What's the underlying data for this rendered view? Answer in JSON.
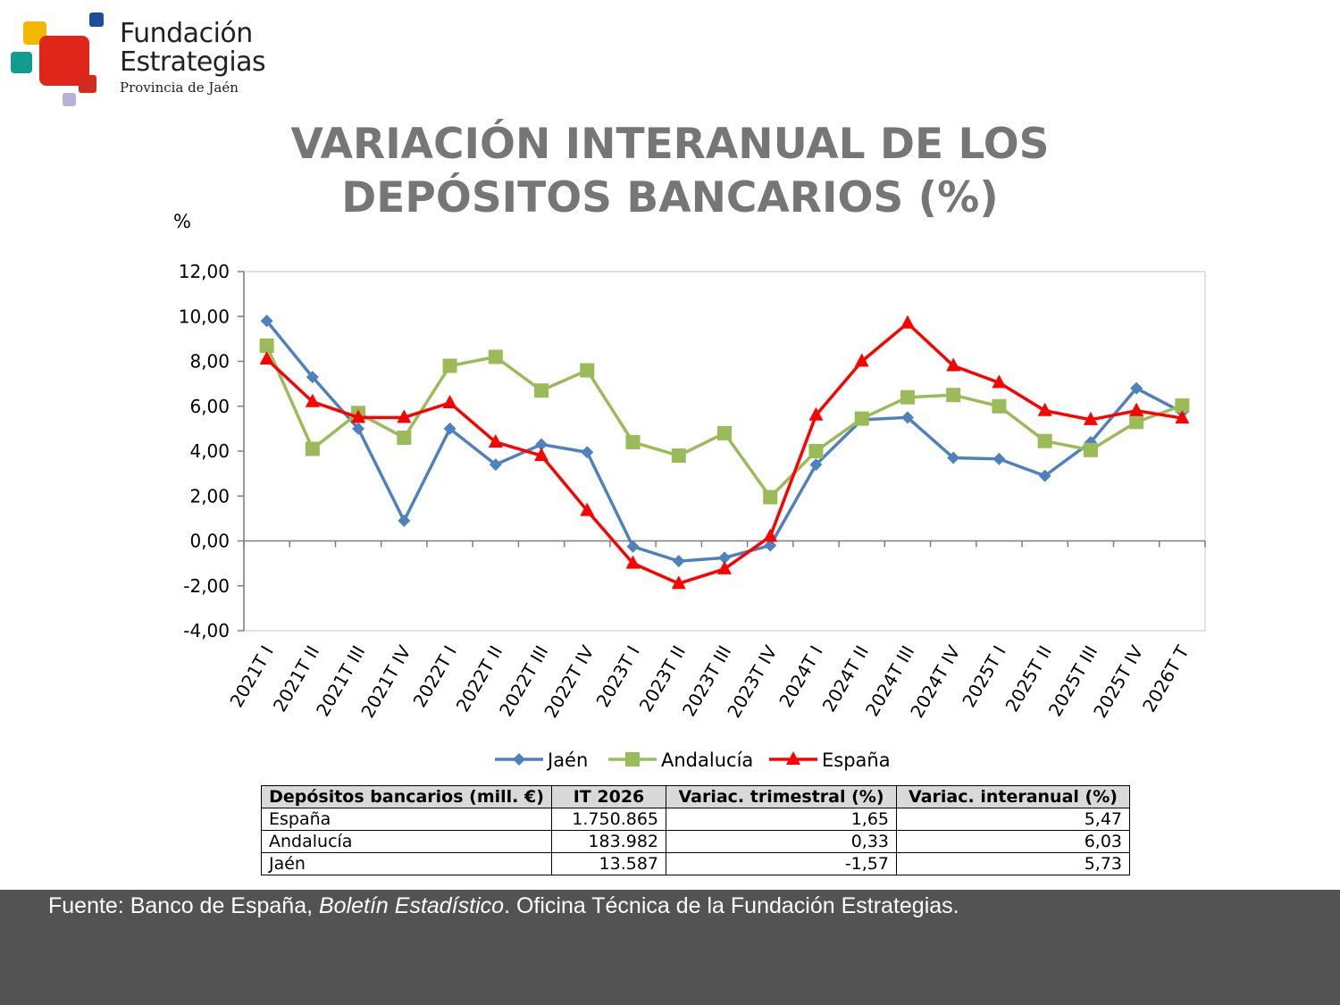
{
  "logo": {
    "line1": "Fundación",
    "line2": "Estrategias",
    "line3": "Provincia de Jaén",
    "colors": {
      "red": "#e0261b",
      "yellow": "#f5b800",
      "teal": "#139b8e",
      "blue": "#1a4f9a",
      "lavender": "#b9b2d6",
      "darkred": "#d12a1e"
    }
  },
  "title": {
    "line1": "VARIACIÓN INTERANUAL DE LOS",
    "line2": "DEPÓSITOS BANCARIOS (%)"
  },
  "unit_label": "%",
  "chart_data": {
    "type": "line",
    "categories": [
      "2021T I",
      "2021T II",
      "2021T III",
      "2021T IV",
      "2022T I",
      "2022T II",
      "2022T III",
      "2022T IV",
      "2023T I",
      "2023T II",
      "2023T III",
      "2023T IV",
      "2024T I",
      "2024T II",
      "2024T III",
      "2024T IV",
      "2025T I",
      "2025T II",
      "2025T III",
      "2025T IV",
      "2026T T"
    ],
    "series": [
      {
        "name": "Jaén",
        "color": "#4f81bd",
        "marker": "diamond",
        "values": [
          9.8,
          7.3,
          5.0,
          0.9,
          5.0,
          3.4,
          4.3,
          3.95,
          -0.25,
          -0.9,
          -0.75,
          -0.2,
          3.4,
          5.4,
          5.5,
          3.7,
          3.65,
          2.9,
          4.4,
          6.8,
          5.73
        ]
      },
      {
        "name": "Andalucía",
        "color": "#9bbb59",
        "marker": "square",
        "values": [
          8.7,
          4.1,
          5.7,
          4.6,
          7.8,
          8.2,
          6.7,
          7.6,
          4.4,
          3.8,
          4.8,
          1.95,
          4.0,
          5.45,
          6.4,
          6.5,
          6.0,
          4.45,
          4.05,
          5.3,
          6.03
        ]
      },
      {
        "name": "España",
        "color": "#ff0000",
        "marker": "triangle",
        "values": [
          8.1,
          6.2,
          5.5,
          5.5,
          6.15,
          4.4,
          3.8,
          1.35,
          -1.0,
          -1.9,
          -1.25,
          0.2,
          5.6,
          8.0,
          9.7,
          7.8,
          7.05,
          5.8,
          5.4,
          5.8,
          5.47
        ]
      }
    ],
    "ylim": [
      -4,
      12
    ],
    "yticks": [
      12,
      10,
      8,
      6,
      4,
      2,
      0,
      -2,
      -4
    ],
    "ytick_labels": [
      "12,00",
      "10,00",
      "8,00",
      "6,00",
      "4,00",
      "2,00",
      "0,00",
      "-2,00",
      "-4,00"
    ],
    "grid": false,
    "legend": "bottom-center",
    "plot_border_color": "#d9d9d9"
  },
  "table": {
    "headers": [
      "Depósitos bancarios (mill. €)",
      "IT 2026",
      "Variac. trimestral (%)",
      "Variac. interanual (%)"
    ],
    "rows": [
      [
        "España",
        "1.750.865",
        "1,65",
        "5,47"
      ],
      [
        "Andalucía",
        "183.982",
        "0,33",
        "6,03"
      ],
      [
        "Jaén",
        "13.587",
        "-1,57",
        "5,73"
      ]
    ]
  },
  "footer": {
    "prefix": "Fuente: Banco de España, ",
    "italic": "Boletín Estadístico",
    "suffix": ". Oficina Técnica de la Fundación Estrategias.",
    "background": "#535353"
  }
}
